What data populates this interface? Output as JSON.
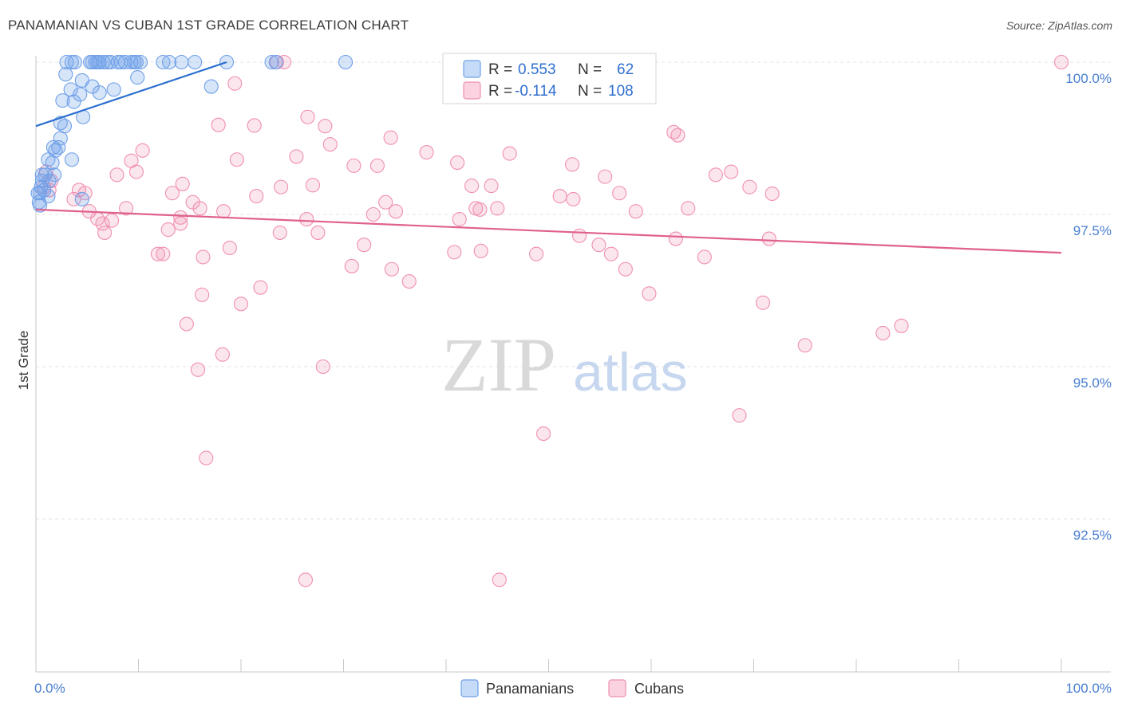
{
  "header": {
    "title": "PANAMANIAN VS CUBAN 1ST GRADE CORRELATION CHART",
    "source": "Source: ZipAtlas.com"
  },
  "watermark": {
    "zip": "ZIP",
    "atlas": "atlas"
  },
  "stats": [
    {
      "r_label": "R =",
      "r_value": "0.553",
      "n_label": "N =",
      "n_value": "62",
      "color": "#6fa0e8"
    },
    {
      "r_label": "R =",
      "r_value": "-0.114",
      "n_label": "N =",
      "n_value": "108",
      "color": "#f08fb0"
    }
  ],
  "chart_data": {
    "type": "scatter",
    "title": "PANAMANIAN VS CUBAN 1ST GRADE CORRELATION CHART",
    "xlabel": "",
    "ylabel": "1st Grade",
    "xlim": [
      0,
      100
    ],
    "ylim": [
      90.1,
      100.5
    ],
    "x_tick_labels": [
      "0.0%",
      "100.0%"
    ],
    "y_ticks": [
      {
        "value": 100.0,
        "label": "100.0%"
      },
      {
        "value": 97.5,
        "label": "97.5%"
      },
      {
        "value": 95.0,
        "label": "95.0%"
      },
      {
        "value": 92.5,
        "label": "92.5%"
      }
    ],
    "legend": [
      "Panamanians",
      "Cubans"
    ],
    "series": [
      {
        "name": "Panamanians",
        "color": "#6fa0e8",
        "trend": {
          "x": [
            0.0,
            18.6
          ],
          "y": [
            98.95,
            100.0
          ]
        },
        "points": [
          [
            3.0,
            100.0
          ],
          [
            3.5,
            100.0
          ],
          [
            3.8,
            100.0
          ],
          [
            5.3,
            100.0
          ],
          [
            5.5,
            100.0
          ],
          [
            5.8,
            100.0
          ],
          [
            6.0,
            100.0
          ],
          [
            6.2,
            100.0
          ],
          [
            6.6,
            100.0
          ],
          [
            7.0,
            100.0
          ],
          [
            7.3,
            100.0
          ],
          [
            8.0,
            100.0
          ],
          [
            8.3,
            100.0
          ],
          [
            8.7,
            100.0
          ],
          [
            9.3,
            100.0
          ],
          [
            9.6,
            100.0
          ],
          [
            9.8,
            100.0
          ],
          [
            10.2,
            100.0
          ],
          [
            12.4,
            100.0
          ],
          [
            13.0,
            100.0
          ],
          [
            14.2,
            100.0
          ],
          [
            15.5,
            100.0
          ],
          [
            18.6,
            100.0
          ],
          [
            23.0,
            100.0
          ],
          [
            23.4,
            100.0
          ],
          [
            30.2,
            100.0
          ],
          [
            2.9,
            99.8
          ],
          [
            4.5,
            99.7
          ],
          [
            5.5,
            99.6
          ],
          [
            7.6,
            99.55
          ],
          [
            9.9,
            99.75
          ],
          [
            3.4,
            99.55
          ],
          [
            6.2,
            99.5
          ],
          [
            4.3,
            99.47
          ],
          [
            2.6,
            99.37
          ],
          [
            3.7,
            99.35
          ],
          [
            17.1,
            99.6
          ],
          [
            4.6,
            99.1
          ],
          [
            2.4,
            99.0
          ],
          [
            2.8,
            98.95
          ],
          [
            2.4,
            98.75
          ],
          [
            1.7,
            98.6
          ],
          [
            2.2,
            98.6
          ],
          [
            1.9,
            98.55
          ],
          [
            1.2,
            98.4
          ],
          [
            1.6,
            98.35
          ],
          [
            3.5,
            98.4
          ],
          [
            0.6,
            98.15
          ],
          [
            0.9,
            98.15
          ],
          [
            1.8,
            98.15
          ],
          [
            0.6,
            98.05
          ],
          [
            1.3,
            98.05
          ],
          [
            0.5,
            97.95
          ],
          [
            0.8,
            97.9
          ],
          [
            0.2,
            97.85
          ],
          [
            0.4,
            97.85
          ],
          [
            1.2,
            97.8
          ],
          [
            4.5,
            97.75
          ],
          [
            0.3,
            97.7
          ],
          [
            0.4,
            97.65
          ]
        ]
      },
      {
        "name": "Cubans",
        "color": "#f08fb0",
        "trend": {
          "x": [
            0.0,
            100.0
          ],
          "y": [
            97.58,
            96.87
          ]
        },
        "points": [
          [
            23.5,
            100.0
          ],
          [
            24.2,
            100.0
          ],
          [
            100.0,
            100.0
          ],
          [
            19.4,
            99.65
          ],
          [
            26.5,
            99.1
          ],
          [
            17.8,
            98.97
          ],
          [
            21.3,
            98.96
          ],
          [
            28.2,
            98.95
          ],
          [
            34.6,
            98.76
          ],
          [
            38.1,
            98.52
          ],
          [
            28.7,
            98.65
          ],
          [
            41.1,
            98.35
          ],
          [
            31.0,
            98.3
          ],
          [
            25.4,
            98.45
          ],
          [
            19.6,
            98.4
          ],
          [
            10.4,
            98.55
          ],
          [
            9.3,
            98.38
          ],
          [
            9.8,
            98.2
          ],
          [
            7.9,
            98.15
          ],
          [
            14.3,
            98.0
          ],
          [
            23.9,
            97.95
          ],
          [
            27.0,
            97.98
          ],
          [
            33.3,
            98.3
          ],
          [
            42.5,
            97.97
          ],
          [
            44.4,
            97.97
          ],
          [
            46.2,
            98.5
          ],
          [
            52.3,
            98.32
          ],
          [
            55.5,
            98.12
          ],
          [
            62.2,
            98.85
          ],
          [
            62.6,
            98.8
          ],
          [
            66.3,
            98.15
          ],
          [
            67.8,
            98.2
          ],
          [
            69.6,
            97.95
          ],
          [
            71.8,
            97.84
          ],
          [
            13.3,
            97.85
          ],
          [
            21.5,
            97.8
          ],
          [
            34.1,
            97.7
          ],
          [
            51.1,
            97.8
          ],
          [
            52.4,
            97.75
          ],
          [
            56.9,
            97.85
          ],
          [
            15.3,
            97.7
          ],
          [
            35.1,
            97.55
          ],
          [
            43.3,
            97.58
          ],
          [
            45.0,
            97.6
          ],
          [
            18.3,
            97.55
          ],
          [
            26.4,
            97.42
          ],
          [
            41.3,
            97.42
          ],
          [
            58.5,
            97.55
          ],
          [
            63.6,
            97.6
          ],
          [
            32.9,
            97.5
          ],
          [
            42.9,
            97.6
          ],
          [
            8.8,
            97.6
          ],
          [
            7.4,
            97.4
          ],
          [
            14.1,
            97.35
          ],
          [
            16.0,
            97.6
          ],
          [
            6.5,
            97.35
          ],
          [
            1.0,
            98.2
          ],
          [
            1.5,
            98.05
          ],
          [
            0.8,
            97.95
          ],
          [
            1.3,
            97.9
          ],
          [
            4.2,
            97.9
          ],
          [
            4.8,
            97.85
          ],
          [
            3.7,
            97.75
          ],
          [
            5.2,
            97.55
          ],
          [
            6.0,
            97.43
          ],
          [
            6.7,
            97.2
          ],
          [
            12.9,
            97.25
          ],
          [
            14.1,
            97.45
          ],
          [
            23.8,
            97.2
          ],
          [
            27.5,
            97.2
          ],
          [
            32.0,
            97.0
          ],
          [
            53.0,
            97.15
          ],
          [
            54.9,
            97.0
          ],
          [
            62.4,
            97.1
          ],
          [
            71.5,
            97.1
          ],
          [
            18.9,
            96.95
          ],
          [
            16.3,
            96.8
          ],
          [
            11.9,
            96.85
          ],
          [
            12.4,
            96.85
          ],
          [
            40.8,
            96.88
          ],
          [
            43.4,
            96.9
          ],
          [
            48.8,
            96.85
          ],
          [
            56.1,
            96.85
          ],
          [
            65.2,
            96.8
          ],
          [
            30.8,
            96.65
          ],
          [
            34.7,
            96.6
          ],
          [
            57.5,
            96.6
          ],
          [
            36.4,
            96.4
          ],
          [
            21.9,
            96.3
          ],
          [
            16.2,
            96.18
          ],
          [
            20.0,
            96.03
          ],
          [
            59.8,
            96.2
          ],
          [
            70.9,
            96.05
          ],
          [
            14.7,
            95.7
          ],
          [
            84.4,
            95.67
          ],
          [
            82.6,
            95.55
          ],
          [
            75.0,
            95.35
          ],
          [
            18.2,
            95.2
          ],
          [
            28.0,
            95.0
          ],
          [
            15.8,
            94.95
          ],
          [
            49.5,
            93.9
          ],
          [
            68.6,
            94.2
          ],
          [
            16.6,
            93.5
          ],
          [
            26.3,
            91.5
          ],
          [
            45.2,
            91.5
          ]
        ]
      }
    ]
  }
}
